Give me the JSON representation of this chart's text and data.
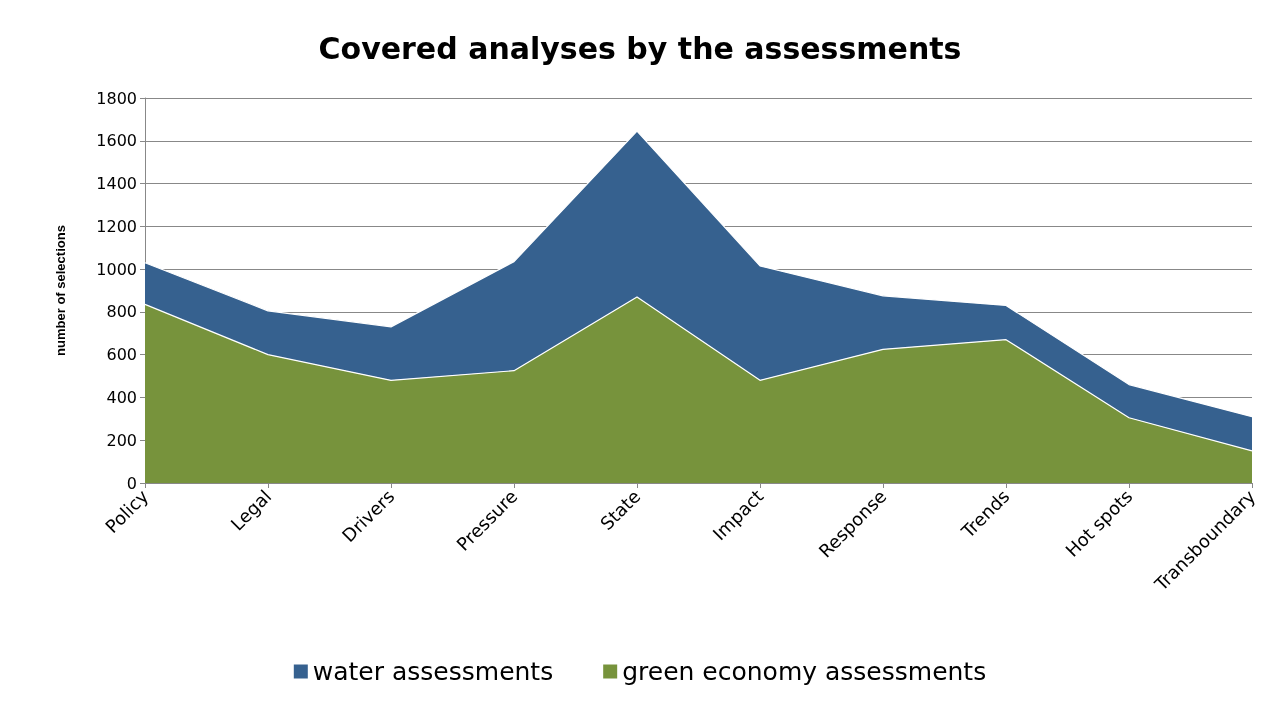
{
  "chart_data": {
    "type": "area",
    "title": "Covered analyses by the assessments",
    "ylabel": "number of selections",
    "categories": [
      "Policy",
      "Legal",
      "Drivers",
      "Pressure",
      "State",
      "Impact",
      "Response",
      "Trends",
      "Hot spots",
      "Transboundary"
    ],
    "stacked": true,
    "series": [
      {
        "name": "green economy assessments",
        "color": "#77933c",
        "values": [
          835,
          600,
          480,
          525,
          870,
          480,
          625,
          670,
          305,
          150
        ]
      },
      {
        "name": "water assessments",
        "color": "#36618f",
        "values": [
          195,
          205,
          250,
          510,
          775,
          535,
          250,
          160,
          155,
          160
        ]
      }
    ],
    "ylim": [
      0,
      1800
    ],
    "yticks": [
      0,
      200,
      400,
      600,
      800,
      1000,
      1200,
      1400,
      1600,
      1800
    ],
    "grid": "y",
    "legend": "bottom"
  }
}
